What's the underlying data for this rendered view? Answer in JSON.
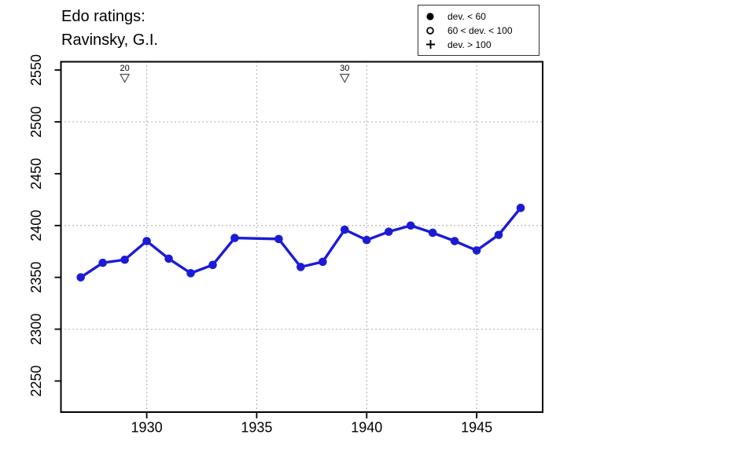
{
  "title": {
    "line1": "Edo ratings:",
    "line2": "Ravinsky, G.I."
  },
  "legend": {
    "items": [
      {
        "icon": "filled-circle",
        "label": "dev. < 60"
      },
      {
        "icon": "open-circle",
        "label": "60 < dev. < 100"
      },
      {
        "icon": "plus",
        "label": "dev. > 100"
      }
    ]
  },
  "chart_data": {
    "type": "line",
    "title": "Edo ratings: Ravinsky, G.I.",
    "xlabel": "",
    "ylabel": "",
    "xlim": [
      1926.1,
      1948.0
    ],
    "ylim": [
      2220,
      2558
    ],
    "x_ticks": [
      1930,
      1935,
      1940,
      1945
    ],
    "y_ticks": [
      2250,
      2300,
      2350,
      2400,
      2450,
      2500,
      2550
    ],
    "grid_x_at": [
      1930,
      1935,
      1940,
      1945
    ],
    "grid_y_at": [
      2300,
      2400,
      2500
    ],
    "grid_style": "dotted",
    "series": [
      {
        "name": "Edo rating",
        "marker": "filled-circle",
        "marker_meaning": "dev. < 60",
        "points": [
          [
            1927,
            2350
          ],
          [
            1928,
            2364
          ],
          [
            1929,
            2367
          ],
          [
            1930,
            2385
          ],
          [
            1931,
            2368
          ],
          [
            1932,
            2354
          ],
          [
            1933,
            2362
          ],
          [
            1934,
            2388
          ],
          [
            1936,
            2387
          ],
          [
            1937,
            2360
          ],
          [
            1938,
            2365
          ],
          [
            1939,
            2396
          ],
          [
            1940,
            2386
          ],
          [
            1941,
            2394
          ],
          [
            1942,
            2400
          ],
          [
            1943,
            2393
          ],
          [
            1944,
            2385
          ],
          [
            1945,
            2376
          ],
          [
            1946,
            2391
          ],
          [
            1947,
            2417
          ]
        ]
      }
    ],
    "event_markers": [
      {
        "x": 1929,
        "label": "20",
        "symbol": "open-triangle-down"
      },
      {
        "x": 1939,
        "label": "30",
        "symbol": "open-triangle-down"
      }
    ],
    "colors": {
      "line": "#1b1bd6",
      "point": "#1b1bd6",
      "axis": "#000000",
      "grid": "#8c8c8c",
      "marker_outline": "#4d4d4d",
      "text": "#000000"
    }
  }
}
